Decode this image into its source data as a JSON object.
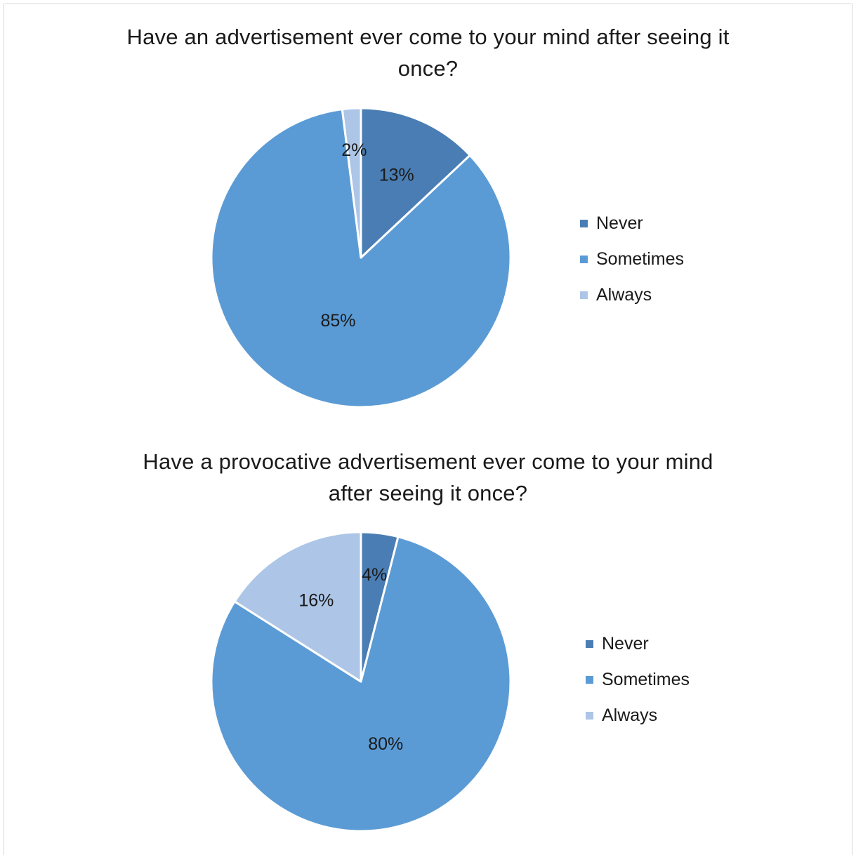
{
  "chart_data": [
    {
      "type": "pie",
      "title": "Have an advertisement ever come to your mind after seeing it once?",
      "title_lines": [
        "Have an advertisement ever come to your mind after seeing it",
        "once?"
      ],
      "categories": [
        "Never",
        "Sometimes",
        "Always"
      ],
      "values": [
        13,
        85,
        2
      ],
      "data_labels": [
        "13%",
        "85%",
        "2%"
      ],
      "colors": [
        "#4a7db3",
        "#5b9bd5",
        "#adc5e6"
      ],
      "legend_position": "right"
    },
    {
      "type": "pie",
      "title": "Have a provocative advertisement ever come to your mind after seeing it once?",
      "title_lines": [
        "Have a provocative advertisement ever come to your mind",
        "after seeing it once?"
      ],
      "categories": [
        "Never",
        "Sometimes",
        "Always"
      ],
      "values": [
        4,
        80,
        16
      ],
      "data_labels": [
        "4%",
        "80%",
        "16%"
      ],
      "colors": [
        "#4a7db3",
        "#5b9bd5",
        "#adc5e6"
      ],
      "legend_position": "right"
    }
  ]
}
